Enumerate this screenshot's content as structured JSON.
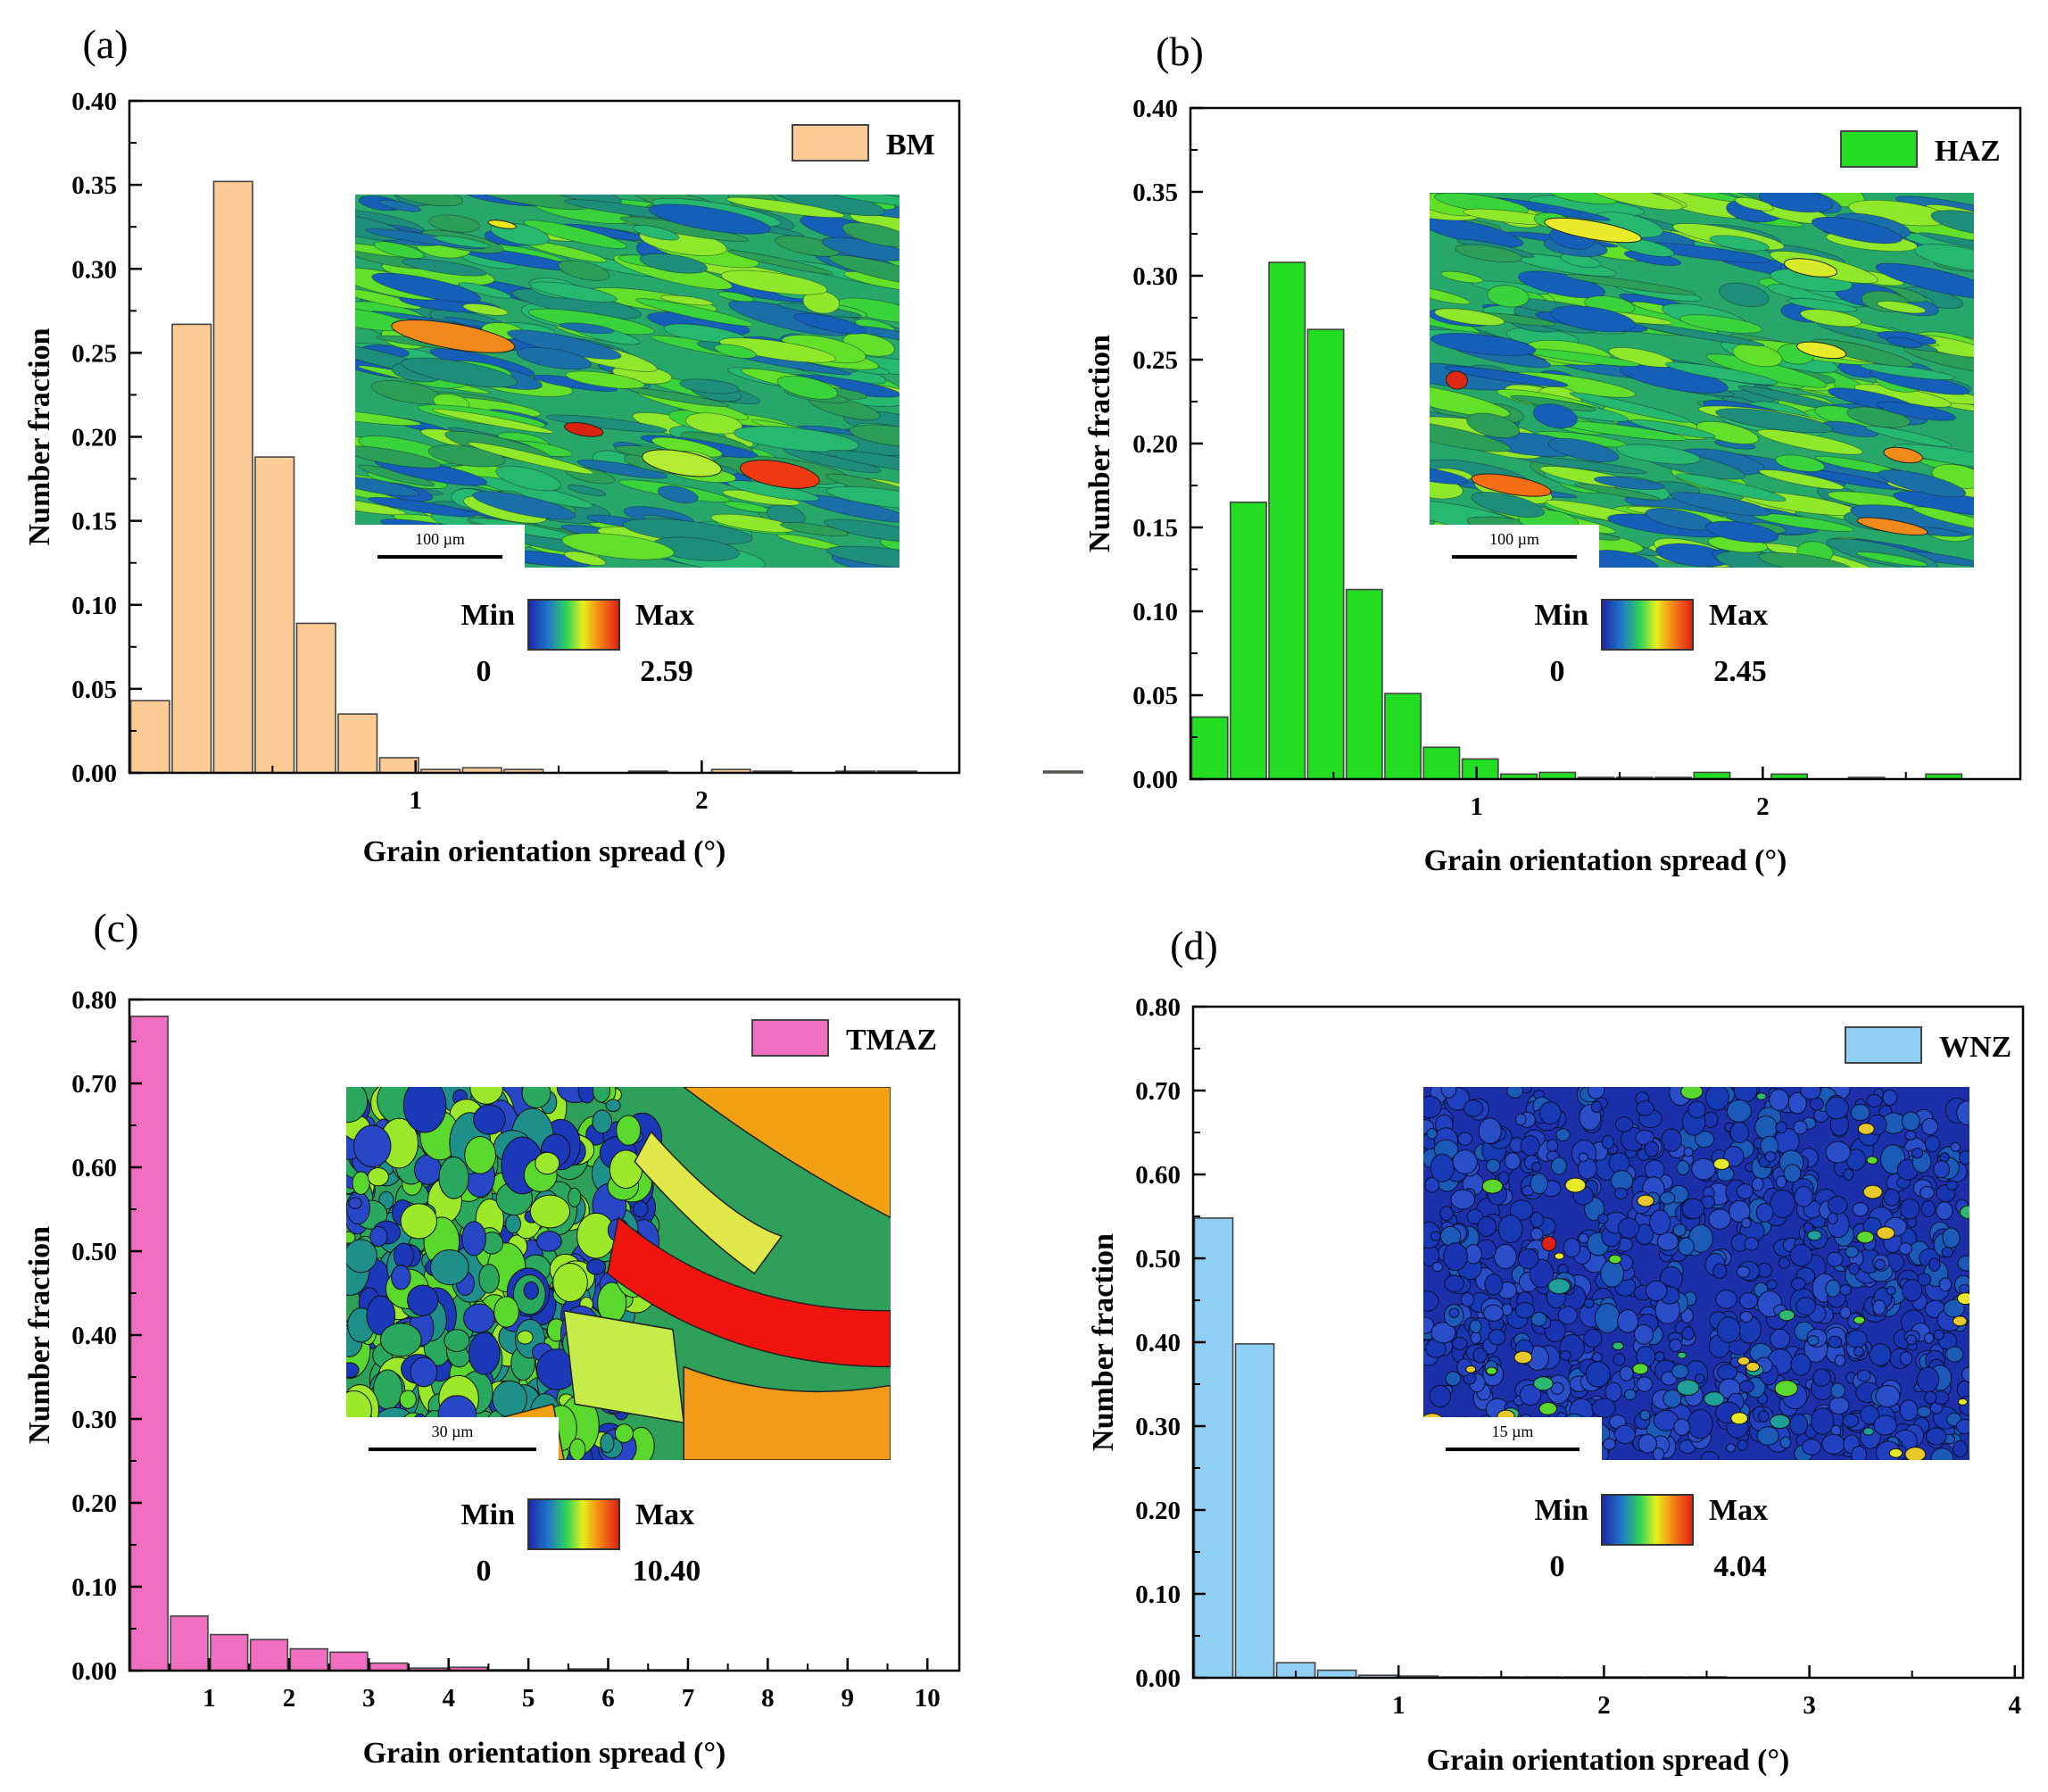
{
  "chart_data": [
    {
      "type": "bar",
      "panel_label": "(a)",
      "legend": "BM",
      "bar_color": "#fdcc96",
      "xlabel": "Grain orientation spread (°)",
      "ylabel": "Number fraction",
      "ylim": [
        0,
        0.4
      ],
      "yticks": [
        "0.00",
        "0.05",
        "0.10",
        "0.15",
        "0.20",
        "0.25",
        "0.30",
        "0.35",
        "0.40"
      ],
      "xlim": [
        0,
        2.9
      ],
      "xticks": [
        "1",
        "2"
      ],
      "bin_width": 0.145,
      "values": [
        0.043,
        0.267,
        0.352,
        0.188,
        0.089,
        0.035,
        0.009,
        0.002,
        0.003,
        0.002,
        0,
        0,
        0.001,
        0,
        0.002,
        0.001,
        0,
        0.001,
        0.001,
        0,
        0,
        0,
        0.001
      ],
      "inset": {
        "scale_label": "100 µm",
        "min_label": "Min",
        "max_label": "Max",
        "min_value": "0",
        "max_value": "2.59",
        "style": "elongated"
      }
    },
    {
      "type": "bar",
      "panel_label": "(b)",
      "legend": "HAZ",
      "bar_color": "#22dd22",
      "xlabel": "Grain orientation spread (°)",
      "ylabel": "Number fraction",
      "ylim": [
        0,
        0.4
      ],
      "yticks": [
        "0.00",
        "0.05",
        "0.10",
        "0.15",
        "0.20",
        "0.25",
        "0.30",
        "0.35",
        "0.40"
      ],
      "xlim": [
        0,
        2.9
      ],
      "xticks": [
        "1",
        "2"
      ],
      "bin_width": 0.135,
      "values": [
        0.037,
        0.165,
        0.308,
        0.268,
        0.113,
        0.051,
        0.019,
        0.012,
        0.003,
        0.004,
        0.001,
        0.001,
        0.001,
        0.004,
        0,
        0.003,
        0,
        0.001,
        0,
        0.003
      ],
      "inset": {
        "scale_label": "100 µm",
        "min_label": "Min",
        "max_label": "Max",
        "min_value": "0",
        "max_value": "2.45",
        "style": "elongated-haz"
      }
    },
    {
      "type": "bar",
      "panel_label": "(c)",
      "legend": "TMAZ",
      "bar_color": "#f06ec0",
      "xlabel": "Grain orientation spread (°)",
      "ylabel": "Number fraction",
      "ylim": [
        0,
        0.8
      ],
      "yticks": [
        "0.00",
        "0.10",
        "0.20",
        "0.30",
        "0.40",
        "0.50",
        "0.60",
        "0.70",
        "0.80"
      ],
      "xlim": [
        0,
        10.4
      ],
      "xticks": [
        "1",
        "2",
        "3",
        "4",
        "5",
        "6",
        "7",
        "8",
        "9",
        "10"
      ],
      "bin_width": 0.5,
      "values": [
        0.78,
        0.065,
        0.043,
        0.037,
        0.026,
        0.022,
        0.009,
        0.003,
        0.004,
        0.001,
        0,
        0.002,
        0,
        0.001
      ],
      "inset": {
        "scale_label": "30 µm",
        "min_label": "Min",
        "max_label": "Max",
        "min_value": "0",
        "max_value": "10.40",
        "style": "tmaz"
      }
    },
    {
      "type": "bar",
      "panel_label": "(d)",
      "legend": "WNZ",
      "bar_color": "#8fd0f5",
      "xlabel": "Grain orientation spread (°)",
      "ylabel": "Number fraction",
      "ylim": [
        0,
        0.8
      ],
      "yticks": [
        "0.00",
        "0.10",
        "0.20",
        "0.30",
        "0.40",
        "0.50",
        "0.60",
        "0.70",
        "0.80"
      ],
      "xlim": [
        0,
        4.04
      ],
      "xticks": [
        "1",
        "2",
        "3",
        "4"
      ],
      "bin_width": 0.2,
      "values": [
        0.548,
        0.398,
        0.018,
        0.009,
        0.003,
        0.002,
        0.001,
        0.001,
        0.001,
        0.001,
        0.001,
        0.001,
        0.001
      ],
      "inset": {
        "scale_label": "15 µm",
        "min_label": "Min",
        "max_label": "Max",
        "min_value": "0",
        "max_value": "4.04",
        "style": "wnz"
      }
    }
  ]
}
